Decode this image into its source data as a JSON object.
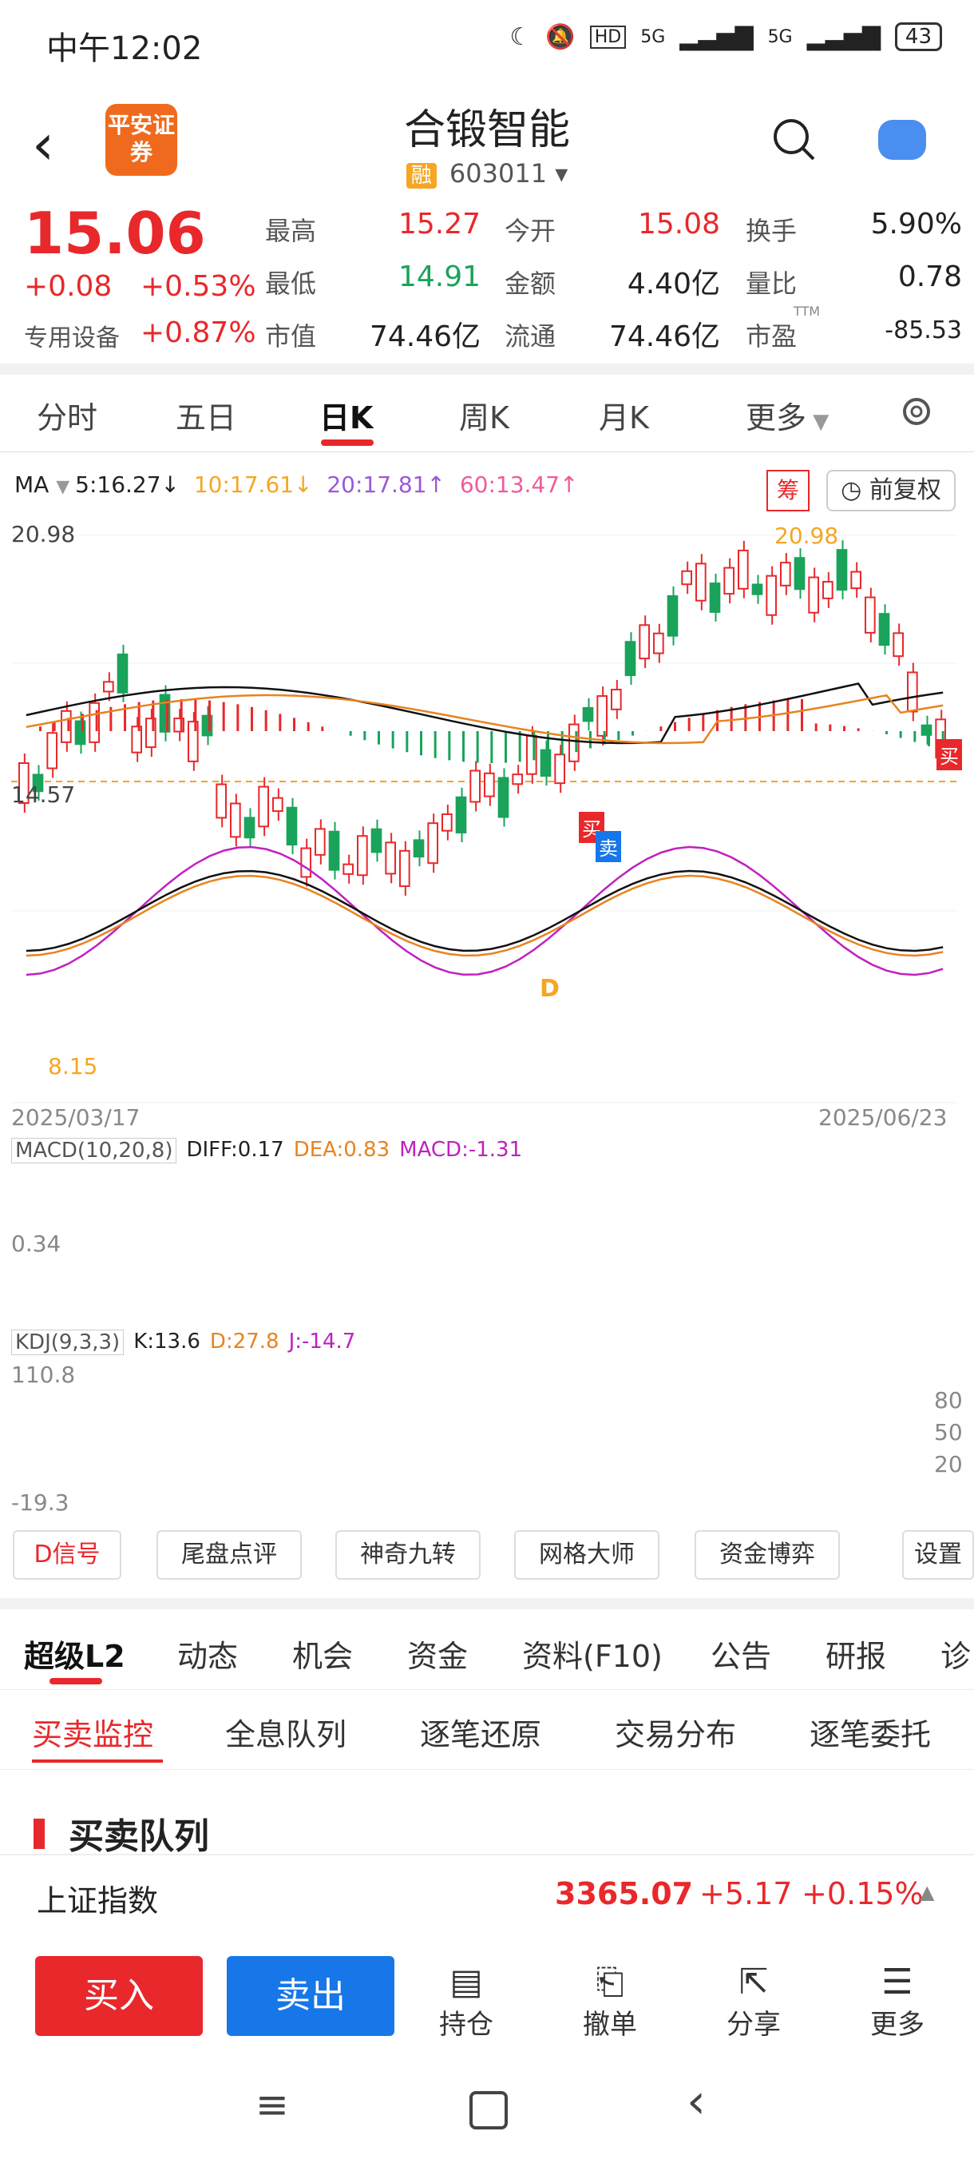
{
  "status": {
    "time": "中午12:02",
    "hd": "HD",
    "battery": "43",
    "net1": "5G",
    "net2": "5G"
  },
  "header": {
    "broker_logo": "平安证券",
    "stock_name": "合锻智能",
    "rong_tag": "融",
    "stock_code": "603011"
  },
  "quote": {
    "price": "15.06",
    "change": "+0.08",
    "change_pct": "+0.53%",
    "industry": "专用设备",
    "industry_pct": "+0.87%",
    "high_label": "最高",
    "high": "15.27",
    "low_label": "最低",
    "low": "14.91",
    "cap_label": "市值",
    "cap": "74.46亿",
    "open_label": "今开",
    "open": "15.08",
    "amount_label": "金额",
    "amount": "4.40亿",
    "float_label": "流通",
    "float_cap": "74.46亿",
    "turnover_label": "换手",
    "turnover": "5.90%",
    "vol_ratio_label": "量比",
    "vol_ratio": "0.78",
    "pe_label": "市盈",
    "pe_sup": "TTM",
    "pe": "-85.53"
  },
  "tabs": {
    "t1": "分时",
    "t2": "五日",
    "t3": "日K",
    "t4": "周K",
    "t5": "月K",
    "t6": "更多"
  },
  "ma": {
    "label": "MA",
    "ma5": "5:16.27↓",
    "ma10": "10:17.61↓",
    "ma20": "20:17.81↑",
    "ma60": "60:13.47↑",
    "chou": "筹",
    "fq": "前复权"
  },
  "kline": {
    "max": "20.98",
    "mid": "14.57",
    "min": "8.15",
    "peak_label": "20.98",
    "date_start": "2025/03/17",
    "date_end": "2025/06/23",
    "buy_tag": "买",
    "sell_tag": "卖",
    "d_tag": "D",
    "buy_tag2": "买"
  },
  "macd": {
    "label": "MACD(10,20,8)",
    "diff": "DIFF:0.17",
    "dea": "DEA:0.83",
    "macd": "MACD:-1.31",
    "axis": "0.34"
  },
  "kdj": {
    "label": "KDJ(9,3,3)",
    "k": "K:13.6",
    "d": "D:27.8",
    "j": "J:-14.7",
    "max": "110.8",
    "min": "-19.3",
    "l80": "80",
    "l50": "50",
    "l20": "20"
  },
  "tools": {
    "b1": "D信号",
    "b2": "尾盘点评",
    "b3": "神奇九转",
    "b4": "网格大师",
    "b5": "资金博弈",
    "b6": "设置"
  },
  "section_tabs": {
    "a": "超级L2",
    "b": "动态",
    "c": "机会",
    "d": "资金",
    "e": "资料(F10)",
    "f": "公告",
    "g": "研报",
    "h": "诊"
  },
  "sub_tabs": {
    "a": "买卖监控",
    "b": "全息队列",
    "c": "逐笔还原",
    "d": "交易分布",
    "e": "逐笔委托"
  },
  "queue_title": "买卖队列",
  "index": {
    "name": "上证指数",
    "value": "3365.07",
    "chg": "+5.17",
    "pct": "+0.15%"
  },
  "actions": {
    "buy": "买入",
    "sell": "卖出",
    "hold": "持仓",
    "cancel": "撤单",
    "share": "分享",
    "more": "更多"
  },
  "colors": {
    "up": "#e8282b",
    "down": "#1aa35a",
    "accent_blue": "#1777e8",
    "ma10": "#f5a623",
    "ma20": "#9b59d6",
    "ma60": "#ef5b9c"
  }
}
